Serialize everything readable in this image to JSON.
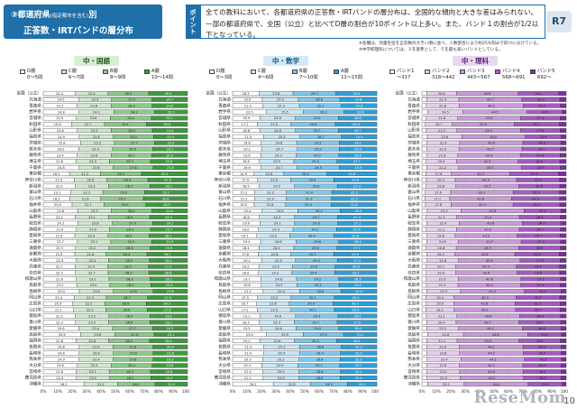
{
  "header": {
    "title_num_label": "③都道府県",
    "title_small": "(指定都市を含む)",
    "title_suffix": "別",
    "title_line2": "正答数・IRTバンドの層分布",
    "point_label": "ポイント",
    "point_text": "全ての教科において、各都道府県の正答数・IRTバンドの層分布は、全国的な傾向と大きな差はみられない。一部の都道府県で、全国（公立）と比べてD層の割合が10ポイント以上多い。また、バンド１の割合が1/2以下となっている。",
    "badge": "R7",
    "note1": "※各層は、児童生徒を正答数の大きい順に並べ、人数割合により約25%刻みで四つに分けている。",
    "note2": "※中学校理科については、３を基準として、５を最も高いバンドとしている。"
  },
  "colors": {
    "kokugo_dark": "#3f9a3f",
    "kokugo_mid": "#8cc98a",
    "kokugo_light": "#cfe8cd",
    "sugaku_dark": "#2f9fd8",
    "sugaku_mid": "#7fc8ec",
    "sugaku_light": "#c8e6f6",
    "rika_5": "#7a2f9a",
    "rika_4": "#a45cc0",
    "rika_3": "#c89bd8",
    "rika_2": "#e5cdee",
    "blank": "#ffffff"
  },
  "footer": {
    "logo": "ReseMom",
    "page": "10"
  },
  "chart_data": [
    {
      "type": "bar",
      "subject": "中・国語",
      "stacked": true,
      "orientation": "horizontal",
      "legend": [
        {
          "name": "D層",
          "range": "0〜5問"
        },
        {
          "name": "C層",
          "range": "6〜7問"
        },
        {
          "name": "B層",
          "range": "8〜9問"
        },
        {
          "name": "A層",
          "range": "10〜14問"
        }
      ],
      "x_ticks": [
        "0%",
        "10%",
        "20%",
        "30%",
        "40%",
        "50%",
        "60%",
        "70%",
        "80%",
        "90%",
        "100%"
      ],
      "categories": [
        "全国（公立）",
        "北海道",
        "青森県",
        "岩手県",
        "宮城県",
        "秋田県",
        "山形県",
        "福島県",
        "茨城県",
        "栃木県",
        "群馬県",
        "埼玉県",
        "千葉県",
        "東京都",
        "神奈川県",
        "新潟県",
        "富山県",
        "石川県",
        "福井県",
        "山梨県",
        "長野県",
        "岐阜県",
        "静岡県",
        "愛知県",
        "三重県",
        "滋賀県",
        "京都府",
        "大阪府",
        "兵庫県",
        "奈良県",
        "和歌山県",
        "鳥取県",
        "島根県",
        "岡山県",
        "広島県",
        "山口県",
        "徳島県",
        "香川県",
        "愛媛県",
        "高知県",
        "福岡県",
        "佐賀県",
        "長崎県",
        "熊本県",
        "大分県",
        "宮崎県",
        "鹿児島県",
        "沖縄県"
      ],
      "series": [
        {
          "name": "D層",
          "values": [
            22.4,
            24.5,
            23.2,
            24.8,
            22.9,
            19.6,
            23.6,
            24.9,
            25.8,
            24.5,
            23.4,
            22.6,
            24.8,
            18.2,
            21.5,
            22.0,
            19.1,
            18.3,
            20.0,
            23.8,
            22.2,
            24.1,
            22.9,
            21.9,
            23.7,
            22.3,
            21.9,
            22.9,
            22.1,
            22.3,
            22.6,
            23.2,
            25.0,
            21.4,
            20.5,
            21.1,
            22.2,
            22.3,
            24.6,
            25.9,
            22.6,
            24.8,
            24.8,
            24.9,
            23.6,
            22.6,
            22.9,
            28.2
          ]
        },
        {
          "name": "C層",
          "values": [
            22.4,
            22.9,
            23.8,
            24.1,
            23.6,
            22.7,
            23.5,
            23.6,
            23.5,
            23.4,
            23.6,
            23.3,
            23.6,
            21.3,
            22.6,
            23.2,
            22.2,
            21.6,
            22.1,
            23.3,
            23.1,
            23.8,
            23.0,
            22.9,
            23.1,
            23.2,
            21.6,
            22.4,
            22.4,
            22.7,
            23.0,
            23.0,
            23.6,
            22.3,
            22.2,
            22.3,
            23.2,
            23.0,
            23.4,
            23.6,
            22.6,
            23.4,
            23.8,
            23.4,
            23.4,
            23.1,
            23.2,
            23.2
          ]
        },
        {
          "name": "B層",
          "values": [
            28.3,
            27.9,
            28.4,
            28.2,
            28.4,
            29.1,
            28.5,
            28.0,
            27.7,
            28.0,
            28.1,
            28.3,
            27.8,
            28.5,
            28.4,
            28.7,
            29.0,
            29.5,
            29.0,
            28.0,
            28.5,
            27.9,
            28.4,
            28.5,
            28.3,
            28.6,
            28.4,
            28.3,
            28.5,
            28.2,
            28.3,
            28.4,
            27.6,
            28.7,
            28.8,
            28.8,
            28.5,
            28.6,
            27.7,
            27.4,
            28.4,
            27.8,
            27.6,
            27.8,
            28.4,
            28.5,
            28.5,
            26.1
          ]
        },
        {
          "name": "A層",
          "values": [
            26.9,
            24.7,
            24.6,
            22.9,
            25.1,
            28.6,
            24.4,
            23.5,
            23.0,
            24.1,
            24.9,
            25.8,
            23.8,
            32.0,
            27.5,
            26.1,
            29.7,
            30.6,
            28.9,
            24.9,
            26.2,
            24.2,
            25.7,
            26.7,
            24.9,
            25.9,
            28.1,
            26.4,
            27.0,
            26.8,
            26.1,
            25.4,
            23.8,
            27.6,
            28.5,
            27.8,
            26.1,
            26.1,
            24.3,
            23.1,
            26.4,
            24.0,
            23.8,
            23.9,
            24.6,
            25.8,
            25.4,
            22.5
          ]
        }
      ]
    },
    {
      "type": "bar",
      "subject": "中・数学",
      "stacked": true,
      "orientation": "horizontal",
      "legend": [
        {
          "name": "D層",
          "range": "0〜3問"
        },
        {
          "name": "C層",
          "range": "4〜6問"
        },
        {
          "name": "B層",
          "range": "7〜10問"
        },
        {
          "name": "A層",
          "range": "11〜15問"
        }
      ],
      "x_ticks": [
        "0%",
        "10%",
        "20%",
        "30%",
        "40%",
        "50%",
        "60%",
        "70%",
        "80%",
        "90%",
        "100%"
      ],
      "categories": [
        "全国（公立）",
        "北海道",
        "青森県",
        "岩手県",
        "宮城県",
        "秋田県",
        "山形県",
        "福島県",
        "茨城県",
        "栃木県",
        "群馬県",
        "埼玉県",
        "千葉県",
        "東京都",
        "神奈川県",
        "新潟県",
        "富山県",
        "石川県",
        "福井県",
        "山梨県",
        "長野県",
        "岐阜県",
        "静岡県",
        "愛知県",
        "三重県",
        "滋賀県",
        "京都府",
        "大阪府",
        "兵庫県",
        "奈良県",
        "和歌山県",
        "鳥取県",
        "島根県",
        "岡山県",
        "広島県",
        "山口県",
        "徳島県",
        "香川県",
        "愛媛県",
        "高知県",
        "福岡県",
        "佐賀県",
        "長崎県",
        "熊本県",
        "大分県",
        "宮崎県",
        "鹿児島県",
        "沖縄県"
      ],
      "series": [
        {
          "name": "D層",
          "values": [
            18.3,
            20.6,
            21.0,
            23.5,
            18.9,
            17.1,
            18.8,
            21.5,
            19.8,
            20.1,
            19.6,
            18.6,
            19.9,
            14.9,
            17.4,
            18.5,
            15.2,
            15.3,
            15.0,
            20.4,
            18.6,
            19.0,
            18.0,
            16.7,
            19.4,
            18.4,
            17.8,
            20.1,
            18.2,
            18.0,
            19.7,
            19.8,
            21.1,
            17.3,
            16.7,
            17.2,
            19.1,
            18.5,
            19.5,
            23.5,
            19.1,
            21.4,
            21.4,
            20.9,
            20.3,
            21.0,
            21.1,
            28.2
          ]
        },
        {
          "name": "C層",
          "values": [
            23.6,
            25.0,
            25.3,
            25.5,
            24.6,
            23.5,
            24.8,
            25.3,
            24.6,
            24.7,
            24.3,
            23.9,
            24.7,
            20.6,
            22.9,
            24.5,
            22.2,
            21.9,
            21.8,
            24.9,
            24.3,
            24.1,
            23.9,
            23.0,
            24.6,
            24.1,
            22.6,
            23.5,
            23.4,
            23.2,
            24.6,
            24.9,
            25.4,
            23.2,
            22.6,
            23.3,
            24.6,
            24.3,
            24.6,
            25.5,
            23.6,
            25.1,
            25.0,
            25.2,
            24.9,
            25.0,
            24.9,
            25.8
          ]
        },
        {
          "name": "B層",
          "values": [
            29.7,
            28.8,
            29.1,
            28.2,
            29.9,
            30.6,
            29.7,
            28.7,
            29.5,
            29.2,
            29.7,
            29.8,
            29.5,
            29.9,
            29.9,
            29.6,
            31.4,
            31.3,
            31.4,
            29.2,
            29.7,
            29.8,
            30.2,
            30.4,
            29.6,
            29.8,
            29.7,
            29.0,
            29.6,
            29.6,
            29.2,
            29.1,
            28.6,
            30.1,
            30.4,
            30.1,
            29.4,
            29.7,
            29.5,
            27.9,
            29.3,
            28.6,
            28.4,
            28.6,
            29.1,
            28.8,
            28.6,
            25.5
          ]
        },
        {
          "name": "A層",
          "values": [
            28.4,
            25.6,
            24.6,
            22.8,
            26.6,
            28.8,
            26.7,
            24.5,
            26.1,
            26.0,
            26.4,
            27.7,
            25.9,
            34.6,
            29.8,
            27.4,
            31.2,
            31.5,
            31.8,
            25.5,
            27.4,
            27.1,
            27.9,
            29.9,
            26.4,
            27.7,
            29.9,
            27.4,
            28.8,
            29.2,
            26.5,
            26.2,
            24.9,
            29.4,
            30.3,
            29.4,
            26.9,
            27.5,
            26.4,
            23.1,
            28.0,
            24.9,
            25.2,
            25.3,
            25.7,
            25.2,
            25.4,
            20.5
          ]
        }
      ]
    },
    {
      "type": "bar",
      "subject": "中・理科",
      "stacked": true,
      "orientation": "horizontal",
      "legend": [
        {
          "name": "バンド1",
          "range": "〜317"
        },
        {
          "name": "バンド2",
          "range": "318〜442"
        },
        {
          "name": "バンド3",
          "range": "443〜567"
        },
        {
          "name": "バンド4",
          "range": "568〜691"
        },
        {
          "name": "バンド5",
          "range": "692〜"
        }
      ],
      "x_ticks": [
        "0%",
        "10%",
        "20%",
        "30%",
        "40%",
        "50%",
        "60%",
        "70%",
        "80%",
        "90%",
        "100%"
      ],
      "categories": [
        "全国（公立）",
        "北海道",
        "青森県",
        "岩手県",
        "宮城県",
        "秋田県",
        "山形県",
        "福島県",
        "茨城県",
        "栃木県",
        "群馬県",
        "埼玉県",
        "千葉県",
        "東京都",
        "神奈川県",
        "新潟県",
        "富山県",
        "石川県",
        "福井県",
        "山梨県",
        "長野県",
        "岐阜県",
        "静岡県",
        "愛知県",
        "三重県",
        "滋賀県",
        "京都府",
        "大阪府",
        "兵庫県",
        "奈良県",
        "和歌山県",
        "鳥取県",
        "島根県",
        "岡山県",
        "広島県",
        "山口県",
        "徳島県",
        "香川県",
        "愛媛県",
        "高知県",
        "福岡県",
        "佐賀県",
        "長崎県",
        "熊本県",
        "大分県",
        "宮崎県",
        "鹿児島県",
        "沖縄県"
      ],
      "series": [
        {
          "name": "バンド1",
          "values": [
            3.3,
            3.2,
            3.0,
            4.0,
            3.0,
            2.3,
            3.0,
            3.8,
            3.3,
            3.3,
            3.2,
            3.0,
            3.3,
            2.7,
            3.1,
            2.9,
            2.4,
            2.2,
            2.5,
            3.7,
            3.0,
            3.4,
            2.9,
            3.2,
            3.3,
            3.0,
            3.3,
            3.6,
            3.1,
            3.0,
            3.1,
            3.1,
            3.4,
            2.8,
            3.0,
            2.8,
            3.1,
            3.3,
            3.3,
            4.0,
            3.3,
            3.2,
            3.3,
            3.7,
            3.2,
            3.2,
            3.5,
            4.0
          ]
        },
        {
          "name": "バンド2",
          "values": [
            20.6,
            22.4,
            22.8,
            24.5,
            21.8,
            18.7,
            21.3,
            23.8,
            22.9,
            22.4,
            21.6,
            20.9,
            22.2,
            17.8,
            20.0,
            20.6,
            17.6,
            17.1,
            17.8,
            23.3,
            21.1,
            22.4,
            21.1,
            19.8,
            21.8,
            20.8,
            19.3,
            21.8,
            20.1,
            20.4,
            22.0,
            21.9,
            23.3,
            19.4,
            19.0,
            19.2,
            21.1,
            20.4,
            22.2,
            24.8,
            21.1,
            22.6,
            22.8,
            23.4,
            22.8,
            23.0,
            22.9,
            25.3
          ]
        },
        {
          "name": "バンド3",
          "values": [
            42.8,
            43.7,
            44.3,
            44.5,
            43.6,
            43.0,
            43.9,
            44.0,
            43.8,
            43.7,
            43.4,
            42.9,
            43.5,
            40.3,
            42.5,
            43.5,
            43.2,
            42.8,
            42.9,
            43.9,
            43.4,
            43.8,
            43.5,
            43.0,
            43.7,
            43.3,
            41.8,
            42.6,
            42.4,
            42.6,
            43.6,
            43.5,
            44.3,
            42.9,
            42.6,
            43.0,
            43.6,
            43.5,
            44.1,
            44.6,
            43.0,
            44.2,
            44.2,
            44.1,
            44.0,
            43.9,
            44.0,
            44.4
          ]
        },
        {
          "name": "バンド4",
          "values": [
            28.2,
            26.3,
            25.9,
            24.0,
            27.4,
            31.1,
            27.6,
            24.9,
            26.3,
            26.7,
            27.6,
            28.8,
            26.9,
            33.9,
            29.9,
            28.6,
            32.3,
            33.4,
            32.4,
            25.4,
            28.4,
            26.7,
            28.5,
            29.7,
            27.4,
            28.9,
            30.9,
            27.9,
            29.8,
            29.6,
            27.3,
            27.4,
            25.4,
            30.5,
            31.2,
            30.7,
            28.3,
            28.9,
            26.8,
            23.2,
            28.5,
            26.5,
            26.2,
            25.5,
            26.4,
            26.5,
            26.0,
            23.3
          ]
        },
        {
          "name": "バンド5",
          "values": [
            5.1,
            4.4,
            4.0,
            3.0,
            4.2,
            4.9,
            4.2,
            3.5,
            3.7,
            3.9,
            4.2,
            4.4,
            4.1,
            5.3,
            4.5,
            4.4,
            4.5,
            4.5,
            4.4,
            3.7,
            4.1,
            3.7,
            4.0,
            4.3,
            3.8,
            4.0,
            4.7,
            4.1,
            4.6,
            4.4,
            4.0,
            4.1,
            3.6,
            4.4,
            4.2,
            4.3,
            3.9,
            3.9,
            3.6,
            3.4,
            4.1,
            3.5,
            3.5,
            3.3,
            3.6,
            3.4,
            3.6,
            3.0
          ]
        }
      ]
    }
  ]
}
